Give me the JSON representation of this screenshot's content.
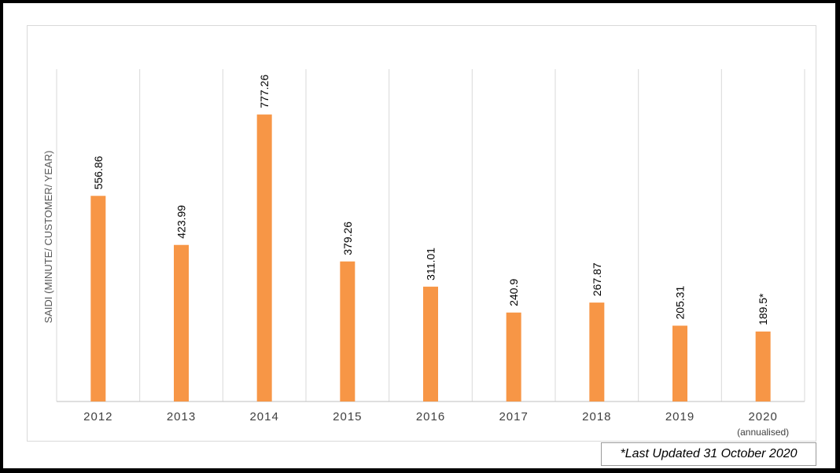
{
  "chart_data": {
    "type": "bar",
    "ylabel": "SAIDI (MINUTE/ CUSTOMER/ YEAR)",
    "xlabel": "",
    "title": "",
    "categories": [
      "2012",
      "2013",
      "2014",
      "2015",
      "2016",
      "2017",
      "2018",
      "2019",
      "2020"
    ],
    "category_sublabels": [
      "",
      "",
      "",
      "",
      "",
      "",
      "",
      "",
      "(annualised)"
    ],
    "values": [
      556.86,
      423.99,
      777.26,
      379.26,
      311.01,
      240.9,
      267.87,
      205.31,
      189.5
    ],
    "data_labels": [
      "556.86",
      "423.99",
      "777.26",
      "379.26",
      "311.01",
      "240.9",
      "267.87",
      "205.31",
      "189.5*"
    ],
    "ylim": [
      0,
      900
    ],
    "grid": "vertical",
    "bar_color": "#f79646",
    "legend": "none"
  },
  "note": {
    "text": "*Last Updated 31 October 2020"
  }
}
